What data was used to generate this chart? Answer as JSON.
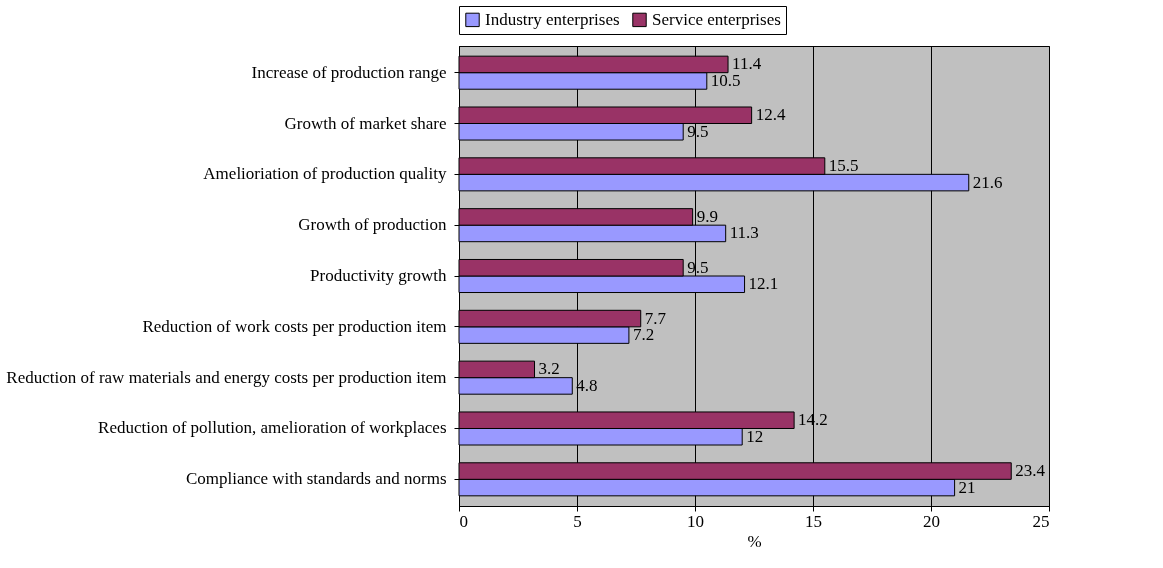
{
  "chart_data": {
    "type": "bar",
    "orientation": "horizontal",
    "xlabel": "%",
    "categories": [
      "Increase of production range",
      "Growth of market share",
      "Amelioriation of production quality",
      "Growth of production",
      "Productivity growth",
      "Reduction of work costs per production item",
      "Reduction of raw materials and energy costs per production item",
      "Reduction of pollution, amelioration of workplaces",
      "Compliance with standards and norms"
    ],
    "series": [
      {
        "name": "Industry enterprises",
        "color": "#9999ff",
        "values": [
          10.5,
          9.5,
          21.6,
          11.3,
          12.1,
          7.2,
          4.8,
          12,
          21
        ]
      },
      {
        "name": "Service enterprises",
        "color": "#993366",
        "values": [
          11.4,
          12.4,
          15.5,
          9.9,
          9.5,
          7.7,
          3.2,
          14.2,
          23.4
        ]
      }
    ],
    "xlim": [
      0,
      25
    ],
    "xticks": [
      0,
      5,
      10,
      15,
      20,
      25
    ],
    "grid": "x",
    "legend": "top",
    "data_labels": true
  }
}
